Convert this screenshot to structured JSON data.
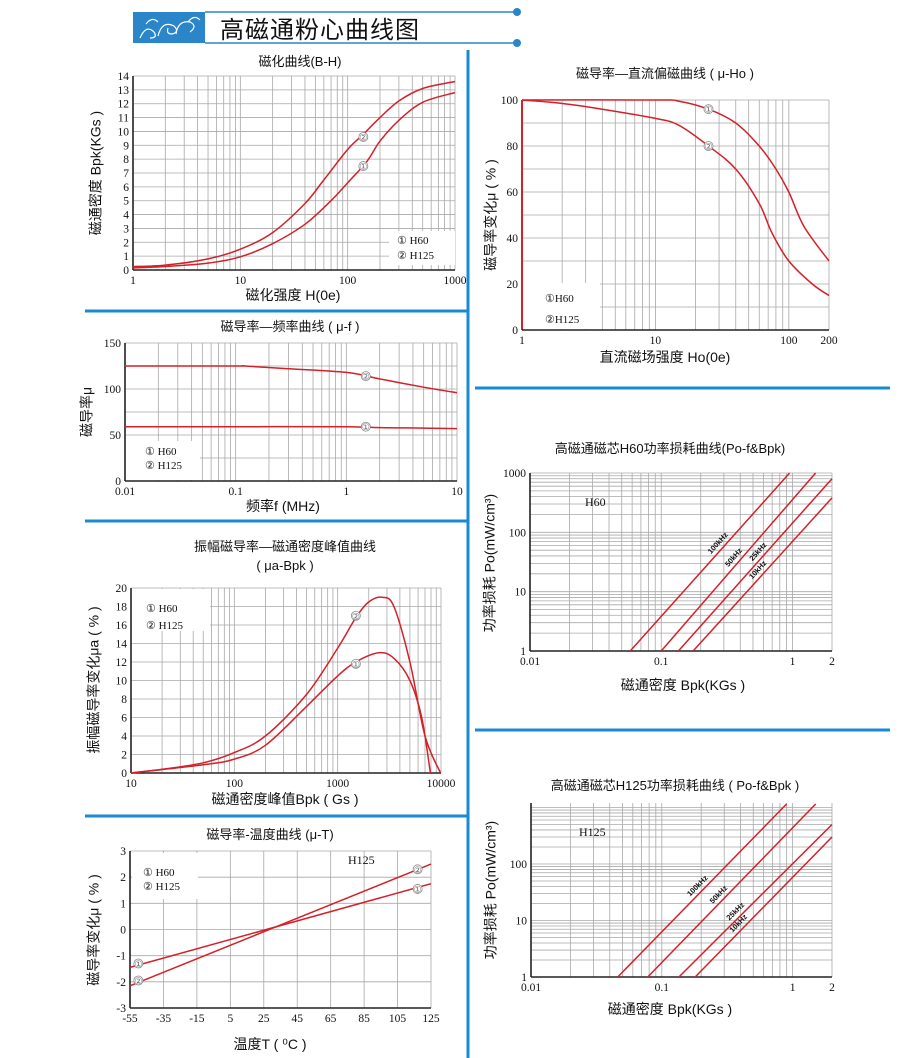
{
  "header": {
    "title": "高磁通粉心曲线图",
    "accent": "#1a8ad4"
  },
  "colors": {
    "curve": "#d42028",
    "grid": "#a8a8a8",
    "divider": "#1a8ad4"
  },
  "chart_data": [
    {
      "id": "b-h",
      "type": "line",
      "title": [
        "磁化曲线(B-H)"
      ],
      "xlabel": "磁化强度 H(0e)",
      "ylabel": "磁通密度 Bpk(KGs )",
      "xscale": "log",
      "yscale": "linear",
      "xlim": [
        1,
        1000
      ],
      "ylim": [
        0,
        14
      ],
      "grid": true,
      "xticks": [
        [
          1,
          "1"
        ],
        [
          10,
          "10"
        ],
        [
          100,
          "100"
        ],
        [
          1000,
          "1000"
        ]
      ],
      "yticks": [
        [
          0,
          "0"
        ],
        [
          1,
          "1"
        ],
        [
          2,
          "2"
        ],
        [
          3,
          "3"
        ],
        [
          4,
          "4"
        ],
        [
          5,
          "5"
        ],
        [
          6,
          "6"
        ],
        [
          7,
          "7"
        ],
        [
          8,
          "8"
        ],
        [
          9,
          "9"
        ],
        [
          10,
          "10"
        ],
        [
          11,
          "11"
        ],
        [
          12,
          "12"
        ],
        [
          13,
          "13"
        ],
        [
          14,
          "14"
        ]
      ],
      "legend": [
        "① H60",
        "② H125"
      ],
      "legend_placement": "bottom-right",
      "series": [
        {
          "name": "H125",
          "marker": "②",
          "marker_at": [
            140,
            9.6
          ],
          "points": [
            [
              1,
              0.25
            ],
            [
              2,
              0.35
            ],
            [
              5,
              0.8
            ],
            [
              10,
              1.5
            ],
            [
              20,
              2.7
            ],
            [
              40,
              4.8
            ],
            [
              60,
              6.5
            ],
            [
              100,
              8.7
            ],
            [
              140,
              9.8
            ],
            [
              200,
              11.0
            ],
            [
              300,
              12.2
            ],
            [
              500,
              13.1
            ],
            [
              1000,
              13.6
            ]
          ]
        },
        {
          "name": "H60",
          "marker": "①",
          "marker_at": [
            140,
            7.5
          ],
          "points": [
            [
              1,
              0.15
            ],
            [
              2,
              0.25
            ],
            [
              5,
              0.5
            ],
            [
              10,
              0.95
            ],
            [
              20,
              1.9
            ],
            [
              40,
              3.3
            ],
            [
              70,
              5.0
            ],
            [
              100,
              6.3
            ],
            [
              150,
              7.8
            ],
            [
              200,
              9.3
            ],
            [
              300,
              10.8
            ],
            [
              500,
              12.1
            ],
            [
              1000,
              12.8
            ]
          ]
        }
      ],
      "annotations": []
    },
    {
      "id": "mu-f",
      "type": "line",
      "title": [
        "磁导率—频率曲线 ( μ-f )"
      ],
      "xlabel": "频率f (MHz)",
      "ylabel": "磁导率μ",
      "xscale": "log",
      "yscale": "linear",
      "xlim": [
        0.01,
        10
      ],
      "ylim": [
        0,
        150
      ],
      "grid": true,
      "xticks": [
        [
          0.01,
          "0.01"
        ],
        [
          0.1,
          "0.1"
        ],
        [
          1,
          "1"
        ],
        [
          10,
          "10"
        ]
      ],
      "yticks": [
        [
          0,
          "0"
        ],
        [
          50,
          "50"
        ],
        [
          100,
          "100"
        ],
        [
          150,
          "150"
        ]
      ],
      "legend": [
        "① H60",
        "② H125"
      ],
      "legend_placement": "bottom-left",
      "series": [
        {
          "name": "H125",
          "marker": "②",
          "marker_at": [
            1.5,
            114
          ],
          "points": [
            [
              0.01,
              125
            ],
            [
              0.1,
              125
            ],
            [
              0.12,
              125
            ],
            [
              0.3,
              122
            ],
            [
              1,
              118
            ],
            [
              2,
              111
            ],
            [
              5,
              102
            ],
            [
              10,
              96
            ]
          ]
        },
        {
          "name": "H60",
          "marker": "①",
          "marker_at": [
            1.5,
            59
          ],
          "points": [
            [
              0.01,
              59
            ],
            [
              0.1,
              59
            ],
            [
              1,
              59
            ],
            [
              2,
              58
            ],
            [
              5,
              57.5
            ],
            [
              10,
              57
            ]
          ]
        }
      ],
      "annotations": []
    },
    {
      "id": "mua-bpk",
      "type": "line",
      "title": [
        "振幅磁导率—磁通密度峰值曲线",
        "( μa-Bpk )"
      ],
      "xlabel": "磁通密度峰值Bpk ( Gs )",
      "ylabel": "振幅磁导率变化μa ( % )",
      "xscale": "log",
      "yscale": "linear",
      "xlim": [
        10,
        10000
      ],
      "ylim": [
        0,
        20
      ],
      "grid": true,
      "xticks": [
        [
          10,
          "10"
        ],
        [
          100,
          "100"
        ],
        [
          1000,
          "1000"
        ],
        [
          10000,
          "10000"
        ]
      ],
      "yticks": [
        [
          0,
          "0"
        ],
        [
          2,
          "2"
        ],
        [
          4,
          "4"
        ],
        [
          6,
          "6"
        ],
        [
          8,
          "8"
        ],
        [
          10,
          "10"
        ],
        [
          12,
          "12"
        ],
        [
          14,
          "14"
        ],
        [
          16,
          "16"
        ],
        [
          18,
          "18"
        ],
        [
          20,
          "20"
        ]
      ],
      "legend": [
        "① H60",
        "② H125"
      ],
      "legend_placement": "top-left",
      "series": [
        {
          "name": "H125",
          "marker": "②",
          "marker_at": [
            1500,
            17
          ],
          "points": [
            [
              10,
              0
            ],
            [
              20,
              0.4
            ],
            [
              50,
              1.1
            ],
            [
              100,
              2.2
            ],
            [
              200,
              4
            ],
            [
              500,
              8.5
            ],
            [
              1000,
              13.5
            ],
            [
              1500,
              16.8
            ],
            [
              2000,
              18.5
            ],
            [
              2700,
              19
            ],
            [
              3500,
              18
            ],
            [
              5000,
              12
            ],
            [
              7000,
              4
            ],
            [
              9900,
              0
            ]
          ]
        },
        {
          "name": "H60",
          "marker": "①",
          "marker_at": [
            1500,
            11.8
          ],
          "points": [
            [
              10,
              0
            ],
            [
              50,
              0.9
            ],
            [
              100,
              1.5
            ],
            [
              200,
              3
            ],
            [
              500,
              7.2
            ],
            [
              1000,
              10.5
            ],
            [
              1500,
              12
            ],
            [
              2500,
              13
            ],
            [
              3500,
              12.4
            ],
            [
              5000,
              10
            ],
            [
              6500,
              6
            ],
            [
              7900,
              0
            ]
          ]
        }
      ],
      "annotations": []
    },
    {
      "id": "mu-t",
      "type": "line",
      "title": [
        "磁导率-温度曲线 (μ-T)"
      ],
      "xlabel": "温度T ( ⁰C )",
      "ylabel": "磁导率变化μ ( % )",
      "xscale": "linear",
      "yscale": "linear",
      "xlim": [
        -55,
        125
      ],
      "ylim": [
        -3,
        3
      ],
      "grid": true,
      "xticks": [
        [
          -55,
          "-55"
        ],
        [
          -35,
          "-35"
        ],
        [
          -15,
          "-15"
        ],
        [
          5,
          "5"
        ],
        [
          25,
          "25"
        ],
        [
          45,
          "45"
        ],
        [
          65,
          "65"
        ],
        [
          85,
          "85"
        ],
        [
          105,
          "105"
        ],
        [
          125,
          "125"
        ]
      ],
      "yticks": [
        [
          -3,
          "-3"
        ],
        [
          -2,
          "-2"
        ],
        [
          -1,
          "-1"
        ],
        [
          0,
          "0"
        ],
        [
          1,
          "1"
        ],
        [
          2,
          "2"
        ],
        [
          3,
          "3"
        ]
      ],
      "legend": [
        "① H60",
        "② H125"
      ],
      "legend_placement": "top-left",
      "series": [
        {
          "name": "H125",
          "marker": "②",
          "marker_at": [
            117,
            2.3
          ],
          "points": [
            [
              -55,
              -2.15
            ],
            [
              125,
              2.5
            ]
          ]
        },
        {
          "name": "H60",
          "marker": "①",
          "marker_at": [
            117,
            1.55
          ],
          "points": [
            [
              -55,
              -1.45
            ],
            [
              125,
              1.75
            ]
          ]
        },
        {
          "name": "H60-start",
          "marker": "①",
          "marker_at": [
            -50,
            -1.3
          ],
          "points": []
        },
        {
          "name": "H125-start",
          "marker": "②",
          "marker_at": [
            -50,
            -1.95
          ],
          "points": []
        }
      ],
      "annotations": [
        "H125"
      ]
    },
    {
      "id": "mu-ho",
      "type": "line",
      "title": [
        "磁导率—直流偏磁曲线 ( μ-Ho )"
      ],
      "xlabel": "直流磁场强度 Ho(0e)",
      "ylabel": "磁导率变化μ ( % )",
      "xscale": "log",
      "yscale": "linear",
      "xlim": [
        1,
        200
      ],
      "ylim": [
        0,
        100
      ],
      "grid": true,
      "xticks": [
        [
          1,
          "1"
        ],
        [
          10,
          "10"
        ],
        [
          100,
          "100"
        ],
        [
          200,
          "200"
        ]
      ],
      "yticks": [
        [
          0,
          "0"
        ],
        [
          20,
          "20"
        ],
        [
          40,
          "40"
        ],
        [
          60,
          "60"
        ],
        [
          80,
          "80"
        ],
        [
          100,
          "100"
        ]
      ],
      "legend": [
        "①H60",
        "②H125"
      ],
      "legend_placement": "bottom-left",
      "series": [
        {
          "name": "H60",
          "marker": "①",
          "marker_at": [
            25,
            96
          ],
          "points": [
            [
              1,
              100
            ],
            [
              10,
              100
            ],
            [
              15,
              99.5
            ],
            [
              25,
              96
            ],
            [
              40,
              90
            ],
            [
              60,
              80
            ],
            [
              80,
              70
            ],
            [
              100,
              60
            ],
            [
              130,
              45
            ],
            [
              200,
              30
            ]
          ]
        },
        {
          "name": "H125",
          "marker": "②",
          "marker_at": [
            25,
            80
          ],
          "points": [
            [
              1,
              100
            ],
            [
              2,
              98.5
            ],
            [
              4,
              96
            ],
            [
              10,
              92
            ],
            [
              15,
              89
            ],
            [
              25,
              80
            ],
            [
              40,
              70
            ],
            [
              60,
              55
            ],
            [
              75,
              42
            ],
            [
              100,
              30
            ],
            [
              150,
              20
            ],
            [
              200,
              15
            ]
          ]
        }
      ],
      "annotations": []
    },
    {
      "id": "loss-h60",
      "type": "line",
      "title": [
        "高磁通磁芯H60功率损耗曲线(Po-f&Bpk)"
      ],
      "xlabel": "磁通密度 Bpk(KGs )",
      "ylabel": "功率损耗 Po(mW/cm³)",
      "xscale": "log",
      "yscale": "log",
      "xlim": [
        0.01,
        2
      ],
      "ylim": [
        1,
        1000
      ],
      "grid": true,
      "xticks": [
        [
          0.01,
          "0.01"
        ],
        [
          0.1,
          "0.1"
        ],
        [
          1,
          "1"
        ],
        [
          2,
          "2"
        ]
      ],
      "yticks": [
        [
          1,
          "1"
        ],
        [
          10,
          "10"
        ],
        [
          100,
          "100"
        ],
        [
          1000,
          "1000"
        ]
      ],
      "legend": [],
      "legend_placement": "none",
      "series": [
        {
          "name": "100kHz",
          "points": [
            [
              0.058,
              1
            ],
            [
              0.95,
              1000
            ]
          ]
        },
        {
          "name": "50kHz",
          "points": [
            [
              0.1,
              1
            ],
            [
              1.5,
              1000
            ]
          ]
        },
        {
          "name": "25kHz",
          "points": [
            [
              0.135,
              1
            ],
            [
              2,
              800
            ]
          ]
        },
        {
          "name": "10kHz",
          "points": [
            [
              0.175,
              1
            ],
            [
              2,
              380
            ]
          ]
        }
      ],
      "annotations": [
        "H60"
      ]
    },
    {
      "id": "loss-h125",
      "type": "line",
      "title": [
        "高磁通磁芯H125功率损耗曲线 ( Po-f&Bpk )"
      ],
      "xlabel": "磁通密度 Bpk(KGs )",
      "ylabel": "功率损耗 Po(mW/cm³)",
      "xscale": "log",
      "yscale": "log",
      "xlim": [
        0.01,
        2
      ],
      "ylim": [
        1,
        1200
      ],
      "grid": true,
      "xticks": [
        [
          0.01,
          "0.01"
        ],
        [
          0.1,
          "0.1"
        ],
        [
          1,
          "1"
        ],
        [
          2,
          "2"
        ]
      ],
      "yticks": [
        [
          1,
          "1"
        ],
        [
          10,
          "10"
        ],
        [
          100,
          "100"
        ]
      ],
      "legend": [],
      "legend_placement": "none",
      "series": [
        {
          "name": "100kHz",
          "points": [
            [
              0.046,
              1
            ],
            [
              0.9,
              1150
            ]
          ]
        },
        {
          "name": "50kHz",
          "points": [
            [
              0.078,
              1
            ],
            [
              1.5,
              1150
            ]
          ]
        },
        {
          "name": "25kHz",
          "points": [
            [
              0.135,
              1
            ],
            [
              2,
              500
            ]
          ]
        },
        {
          "name": "10kHz",
          "points": [
            [
              0.18,
              1
            ],
            [
              2,
              300
            ]
          ]
        }
      ],
      "annotations": [
        "H125"
      ]
    }
  ]
}
